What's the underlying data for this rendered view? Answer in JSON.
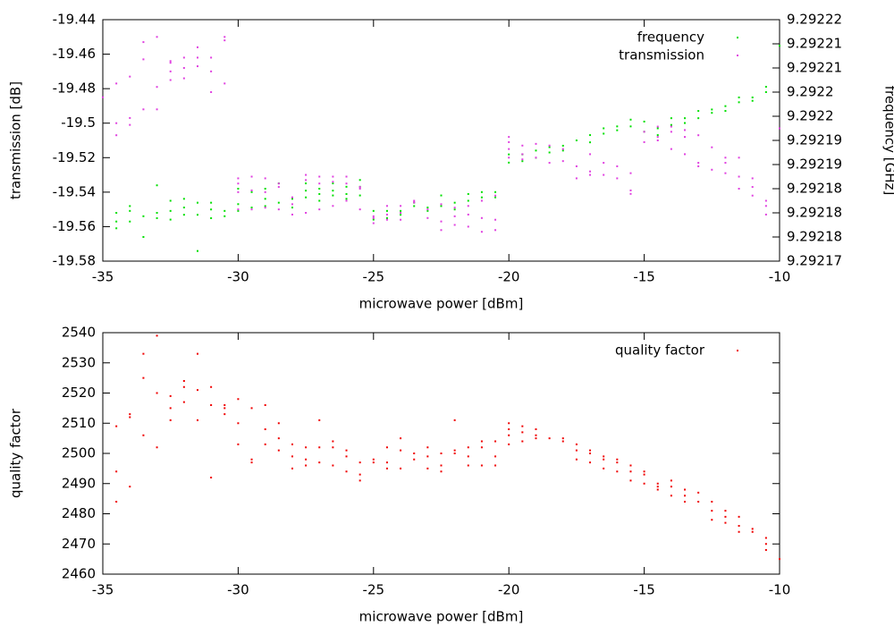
{
  "chart_data": [
    {
      "type": "scatter",
      "xlabel": "microwave power [dBm]",
      "ylabel": "transmission [dB]",
      "y2label": "frequency [GHz]",
      "xlim": [
        -35,
        -10
      ],
      "xticks": [
        -35,
        -30,
        -25,
        -20,
        -15,
        -10
      ],
      "ylim": [
        -19.58,
        -19.44
      ],
      "yticks": [
        -19.58,
        -19.56,
        -19.54,
        -19.52,
        -19.5,
        -19.48,
        -19.46,
        -19.44
      ],
      "y2lim": [
        9.29217,
        9.29222
      ],
      "y2ticks": [
        {
          "value": 9.29217,
          "label": "9.29217"
        },
        {
          "value": 9.292175,
          "label": "9.29218"
        },
        {
          "value": 9.29218,
          "label": "9.29218"
        },
        {
          "value": 9.292185,
          "label": "9.29218"
        },
        {
          "value": 9.29219,
          "label": "9.29219"
        },
        {
          "value": 9.292195,
          "label": "9.29219"
        },
        {
          "value": 9.2922,
          "label": "9.2922"
        },
        {
          "value": 9.292205,
          "label": "9.2922"
        },
        {
          "value": 9.29221,
          "label": "9.29221"
        },
        {
          "value": 9.292215,
          "label": "9.29221"
        },
        {
          "value": 9.29222,
          "label": "9.29222"
        }
      ],
      "legend": "top right",
      "grid": false,
      "series": [
        {
          "name": "frequency",
          "color": "#00e000",
          "axis": "y2",
          "x": [
            -34.5,
            -34.5,
            -34.5,
            -34,
            -34,
            -34,
            -33.5,
            -33.5,
            -33,
            -33,
            -33,
            -32.5,
            -32.5,
            -32.5,
            -32,
            -32,
            -32,
            -31.5,
            -31.5,
            -31.5,
            -31,
            -31,
            -31,
            -30.5,
            -30.5,
            -30,
            -30,
            -30,
            -29.5,
            -29.5,
            -29,
            -29,
            -29,
            -28.5,
            -28.5,
            -28,
            -28,
            -27.5,
            -27.5,
            -27.5,
            -27,
            -27,
            -27,
            -26.5,
            -26.5,
            -26.5,
            -26,
            -26,
            -26,
            -25.5,
            -25.5,
            -25.5,
            -25,
            -25,
            -24.5,
            -24.5,
            -24,
            -24,
            -23.5,
            -23.5,
            -23,
            -23,
            -22.5,
            -22.5,
            -22,
            -22,
            -21.5,
            -21.5,
            -21,
            -21,
            -20.5,
            -20.5,
            -20,
            -20,
            -19.5,
            -19.5,
            -19,
            -19,
            -18.5,
            -18.5,
            -18,
            -18,
            -17.5,
            -17,
            -17,
            -16.5,
            -16.5,
            -16,
            -16,
            -15.5,
            -15.5,
            -15,
            -15,
            -14.5,
            -14.5,
            -14,
            -14,
            -13.5,
            -13.5,
            -13,
            -13,
            -12.5,
            -12.5,
            -12,
            -12,
            -11.5,
            -11.5,
            -11,
            -11,
            -10.5,
            -10.5,
            -10
          ],
          "values": [
            9.29218,
            9.2921782,
            9.2921768,
            9.2921814,
            9.2921804,
            9.2921782,
            9.2921793,
            9.292175,
            9.2921857,
            9.29218,
            9.2921789,
            9.2921825,
            9.2921804,
            9.2921786,
            9.2921829,
            9.2921811,
            9.2921796,
            9.2921821,
            9.2921796,
            9.2921721,
            9.2921821,
            9.2921807,
            9.2921789,
            9.2921804,
            9.2921793,
            9.292185,
            9.2921818,
            9.2921804,
            9.2921843,
            9.2921811,
            9.292185,
            9.2921829,
            9.2921814,
            9.2921861,
            9.2921821,
            9.2921829,
            9.2921811,
            9.2921861,
            9.2921846,
            9.2921832,
            9.292185,
            9.2921839,
            9.2921825,
            9.2921861,
            9.2921846,
            9.2921836,
            9.2921854,
            9.2921839,
            9.2921829,
            9.2921868,
            9.2921854,
            9.2921836,
            9.2921804,
            9.2921786,
            9.2921804,
            9.2921789,
            9.2921804,
            9.2921796,
            9.2921821,
            9.2921814,
            9.2921811,
            9.2921804,
            9.2921836,
            9.2921814,
            9.2921821,
            9.2921807,
            9.2921839,
            9.2921825,
            9.2921843,
            9.2921832,
            9.2921843,
            9.2921832,
            9.2921921,
            9.2921904,
            9.2921921,
            9.2921907,
            9.2921929,
            9.2921914,
            9.2921936,
            9.2921925,
            9.2921939,
            9.2921929,
            9.292195,
            9.2921961,
            9.2921946,
            9.2921975,
            9.2921964,
            9.2921979,
            9.2921971,
            9.2921993,
            9.2921979,
            9.2921989,
            9.2921968,
            9.2921975,
            9.2921961,
            9.2921996,
            9.2921982,
            9.2921996,
            9.2921986,
            9.2922011,
            9.2921996,
            9.2922014,
            9.2922007,
            9.2922021,
            9.2922011,
            9.2922039,
            9.2922029,
            9.2922039,
            9.2922032,
            9.2922061,
            9.292205,
            9.2922146
          ]
        },
        {
          "name": "transmission",
          "color": "#e040e0",
          "x": [
            -35,
            -34.5,
            -34.5,
            -34.5,
            -34,
            -34,
            -34,
            -33.5,
            -33.5,
            -33.5,
            -33,
            -33,
            -33,
            -32.5,
            -32.5,
            -32.5,
            -32.5,
            -32,
            -32,
            -32,
            -31.5,
            -31.5,
            -31.5,
            -31,
            -31,
            -31,
            -30.5,
            -30.5,
            -30.5,
            -30,
            -30,
            -30,
            -30,
            -29.5,
            -29.5,
            -29.5,
            -29,
            -29,
            -29,
            -28.5,
            -28.5,
            -28.5,
            -28,
            -28,
            -28,
            -27.5,
            -27.5,
            -27.5,
            -27,
            -27,
            -27,
            -26.5,
            -26.5,
            -26.5,
            -26,
            -26,
            -26,
            -25.5,
            -25.5,
            -25.5,
            -25,
            -25,
            -25,
            -24.5,
            -24.5,
            -24.5,
            -24,
            -24,
            -24,
            -23.5,
            -23.5,
            -23,
            -23,
            -22.5,
            -22.5,
            -22.5,
            -22,
            -22,
            -22,
            -21.5,
            -21.5,
            -21.5,
            -21,
            -21,
            -21,
            -20.5,
            -20.5,
            -20.5,
            -20,
            -20,
            -20,
            -20,
            -19.5,
            -19.5,
            -19.5,
            -19,
            -19,
            -18.5,
            -18.5,
            -18,
            -18,
            -17.5,
            -17.5,
            -17,
            -17,
            -17,
            -16.5,
            -16.5,
            -16,
            -16,
            -15.5,
            -15.5,
            -15.5,
            -15,
            -15,
            -14.5,
            -14.5,
            -14.5,
            -14,
            -14,
            -14,
            -13.5,
            -13.5,
            -13.5,
            -13,
            -13,
            -13,
            -12.5,
            -12.5,
            -12,
            -12,
            -12,
            -11.5,
            -11.5,
            -11.5,
            -11,
            -11,
            -11,
            -10.5,
            -10.5,
            -10.5,
            -10
          ],
          "values": [
            -19.485,
            -19.477,
            -19.5,
            -19.507,
            -19.473,
            -19.497,
            -19.501,
            -19.453,
            -19.463,
            -19.492,
            -19.45,
            -19.479,
            -19.492,
            -19.464,
            -19.465,
            -19.47,
            -19.475,
            -19.462,
            -19.468,
            -19.474,
            -19.456,
            -19.462,
            -19.467,
            -19.462,
            -19.47,
            -19.482,
            -19.45,
            -19.452,
            -19.477,
            -19.532,
            -19.535,
            -19.54,
            -19.55,
            -19.531,
            -19.539,
            -19.55,
            -19.532,
            -19.54,
            -19.549,
            -19.535,
            -19.537,
            -19.55,
            -19.543,
            -19.547,
            -19.553,
            -19.53,
            -19.533,
            -19.552,
            -19.531,
            -19.535,
            -19.55,
            -19.531,
            -19.534,
            -19.548,
            -19.531,
            -19.535,
            -19.545,
            -19.537,
            -19.538,
            -19.55,
            -19.554,
            -19.555,
            -19.558,
            -19.548,
            -19.553,
            -19.556,
            -19.548,
            -19.552,
            -19.556,
            -19.545,
            -19.546,
            -19.55,
            -19.555,
            -19.547,
            -19.557,
            -19.562,
            -19.549,
            -19.554,
            -19.559,
            -19.548,
            -19.553,
            -19.56,
            -19.545,
            -19.555,
            -19.563,
            -19.542,
            -19.556,
            -19.562,
            -19.508,
            -19.511,
            -19.515,
            -19.52,
            -19.513,
            -19.518,
            -19.521,
            -19.512,
            -19.52,
            -19.513,
            -19.523,
            -19.515,
            -19.522,
            -19.525,
            -19.532,
            -19.518,
            -19.528,
            -19.53,
            -19.523,
            -19.53,
            -19.525,
            -19.532,
            -19.529,
            -19.539,
            -19.541,
            -19.505,
            -19.511,
            -19.502,
            -19.508,
            -19.51,
            -19.502,
            -19.505,
            -19.515,
            -19.504,
            -19.508,
            -19.518,
            -19.507,
            -19.523,
            -19.525,
            -19.514,
            -19.527,
            -19.52,
            -19.523,
            -19.529,
            -19.52,
            -19.531,
            -19.538,
            -19.532,
            -19.537,
            -19.542,
            -19.545,
            -19.548,
            -19.553,
            -19.503
          ]
        }
      ]
    },
    {
      "type": "scatter",
      "xlabel": "microwave power [dBm]",
      "ylabel": "quality factor",
      "xlim": [
        -35,
        -10
      ],
      "xticks": [
        -35,
        -30,
        -25,
        -20,
        -15,
        -10
      ],
      "ylim": [
        2460,
        2540
      ],
      "yticks": [
        2460,
        2470,
        2480,
        2490,
        2500,
        2510,
        2520,
        2530,
        2540
      ],
      "legend": "top right",
      "grid": false,
      "series": [
        {
          "name": "quality factor",
          "color": "#f00000",
          "x": [
            -34.5,
            -34.5,
            -34.5,
            -34,
            -34,
            -34,
            -33.5,
            -33.5,
            -33.5,
            -33,
            -33,
            -33,
            -32.5,
            -32.5,
            -32.5,
            -32,
            -32,
            -32,
            -31.5,
            -31.5,
            -31.5,
            -31,
            -31,
            -31,
            -30.5,
            -30.5,
            -30.5,
            -30,
            -30,
            -30,
            -29.5,
            -29.5,
            -29.5,
            -29,
            -29,
            -29,
            -28.5,
            -28.5,
            -28.5,
            -28,
            -28,
            -28,
            -27.5,
            -27.5,
            -27.5,
            -27,
            -27,
            -27,
            -26.5,
            -26.5,
            -26.5,
            -26,
            -26,
            -26,
            -25.5,
            -25.5,
            -25.5,
            -25,
            -25,
            -24.5,
            -24.5,
            -24.5,
            -24,
            -24,
            -24,
            -23.5,
            -23.5,
            -23,
            -23,
            -23,
            -22.5,
            -22.5,
            -22.5,
            -22,
            -22,
            -22,
            -21.5,
            -21.5,
            -21.5,
            -21,
            -21,
            -21,
            -20.5,
            -20.5,
            -20.5,
            -20,
            -20,
            -20,
            -20,
            -19.5,
            -19.5,
            -19.5,
            -19,
            -19,
            -19,
            -18.5,
            -18,
            -18,
            -17.5,
            -17.5,
            -17.5,
            -17,
            -17,
            -17,
            -16.5,
            -16.5,
            -16.5,
            -16,
            -16,
            -16,
            -15.5,
            -15.5,
            -15.5,
            -15,
            -15,
            -15,
            -14.5,
            -14.5,
            -14.5,
            -14,
            -14,
            -14,
            -13.5,
            -13.5,
            -13.5,
            -13,
            -13,
            -12.5,
            -12.5,
            -12.5,
            -12,
            -12,
            -12,
            -11.5,
            -11.5,
            -11.5,
            -11,
            -11,
            -10.5,
            -10.5,
            -10.5,
            -10
          ],
          "values": [
            2509,
            2494,
            2484,
            2513,
            2512,
            2489,
            2533,
            2525,
            2506,
            2539,
            2520,
            2502,
            2519,
            2515,
            2511,
            2524,
            2522,
            2517,
            2533,
            2521,
            2511,
            2522,
            2516,
            2492,
            2516,
            2515,
            2513,
            2518,
            2510,
            2503,
            2515,
            2498,
            2497,
            2516,
            2508,
            2503,
            2510,
            2505,
            2501,
            2503,
            2499,
            2495,
            2502,
            2498,
            2496,
            2511,
            2502,
            2497,
            2504,
            2502,
            2496,
            2501,
            2499,
            2494,
            2497,
            2493,
            2491,
            2498,
            2497,
            2502,
            2497,
            2495,
            2505,
            2501,
            2495,
            2500,
            2498,
            2502,
            2499,
            2495,
            2500,
            2496,
            2494,
            2511,
            2501,
            2500,
            2502,
            2499,
            2496,
            2504,
            2502,
            2496,
            2504,
            2499,
            2496,
            2510,
            2508,
            2506,
            2503,
            2509,
            2507,
            2504,
            2508,
            2506,
            2505,
            2505,
            2505,
            2504,
            2503,
            2501,
            2498,
            2501,
            2500,
            2497,
            2499,
            2498,
            2495,
            2498,
            2497,
            2494,
            2496,
            2494,
            2491,
            2494,
            2493,
            2490,
            2490,
            2489,
            2488,
            2491,
            2489,
            2486,
            2488,
            2486,
            2484,
            2487,
            2484,
            2484,
            2481,
            2478,
            2481,
            2479,
            2477,
            2479,
            2476,
            2474,
            2475,
            2474,
            2472,
            2470,
            2468,
            2465
          ]
        }
      ]
    }
  ]
}
